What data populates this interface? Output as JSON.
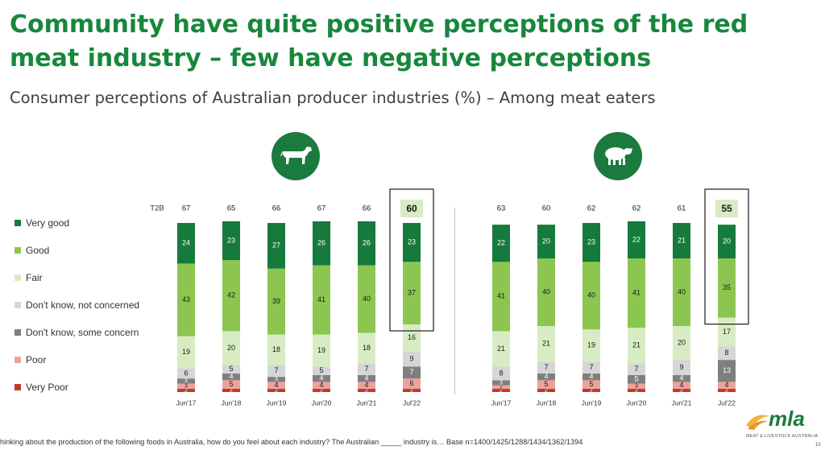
{
  "title": "Community have quite positive perceptions of the red meat industry – few have negative perceptions",
  "subtitle": "Consumer perceptions of Australian producer industries (%) – Among meat eaters",
  "footnote": "hinking about the production of the following foods in Australia, how do you feel about each industry? The Australian _____ industry is… Base n=1400/1425/1288/1434/1362/1394",
  "page_number": "10",
  "logo": {
    "text": "mla",
    "tagline": "MEAT & LIVESTOCK AUSTRALIA"
  },
  "icons": [
    "cattle-icon",
    "sheep-icon"
  ],
  "colors": {
    "very_good": "#157a3c",
    "good": "#8cc650",
    "fair": "#d8ecc4",
    "dk_not_concerned": "#d6d6d6",
    "dk_some_concern": "#7f7f7f",
    "poor": "#eca39c",
    "very_poor": "#c0392b",
    "title": "#17873c"
  },
  "legend": [
    {
      "label": "Very good",
      "color": "#157a3c"
    },
    {
      "label": "Good",
      "color": "#8cc650"
    },
    {
      "label": "Fair",
      "color": "#d8ecc4"
    },
    {
      "label": "Don't know, not concerned",
      "color": "#d6d6d6"
    },
    {
      "label": "Don't know, some concern",
      "color": "#7f7f7f"
    },
    {
      "label": "Poor",
      "color": "#eca39c"
    },
    {
      "label": "Very Poor",
      "color": "#c0392b"
    }
  ],
  "chart_data": [
    {
      "type": "bar",
      "stacked": true,
      "t2b_label": "T2B",
      "categories": [
        "Jun'17",
        "Jun'18",
        "Jun'19",
        "Jun'20",
        "Jun'21",
        "Jul'22"
      ],
      "t2b": [
        67,
        65,
        66,
        67,
        66,
        60
      ],
      "highlight_index": 5,
      "series": [
        {
          "name": "Very good",
          "values": [
            24,
            23,
            27,
            26,
            26,
            23
          ]
        },
        {
          "name": "Good",
          "values": [
            43,
            42,
            39,
            41,
            40,
            37
          ]
        },
        {
          "name": "Fair",
          "values": [
            19,
            20,
            18,
            19,
            18,
            16
          ]
        },
        {
          "name": "Don't know, not concerned",
          "values": [
            6,
            5,
            7,
            5,
            7,
            9
          ]
        },
        {
          "name": "Don't know, some concern",
          "values": [
            3,
            4,
            3,
            4,
            4,
            7
          ]
        },
        {
          "name": "Poor",
          "values": [
            3,
            5,
            4,
            4,
            4,
            6
          ]
        },
        {
          "name": "Very Poor",
          "values": [
            2,
            2,
            2,
            2,
            2,
            2
          ]
        }
      ]
    },
    {
      "type": "bar",
      "stacked": true,
      "categories": [
        "Jun'17",
        "Jun'18",
        "Jun'19",
        "Jun'20",
        "Jun'21",
        "Jul'22"
      ],
      "t2b": [
        63,
        60,
        62,
        62,
        61,
        55
      ],
      "highlight_index": 5,
      "series": [
        {
          "name": "Very good",
          "values": [
            22,
            20,
            23,
            22,
            21,
            20
          ]
        },
        {
          "name": "Good",
          "values": [
            41,
            40,
            40,
            41,
            40,
            35
          ]
        },
        {
          "name": "Fair",
          "values": [
            21,
            21,
            19,
            21,
            20,
            17
          ]
        },
        {
          "name": "Don't know, not concerned",
          "values": [
            8,
            7,
            7,
            7,
            9,
            8
          ]
        },
        {
          "name": "Don't know, some concern",
          "values": [
            3,
            4,
            4,
            5,
            4,
            13
          ]
        },
        {
          "name": "Poor",
          "values": [
            2,
            5,
            5,
            3,
            4,
            4
          ]
        },
        {
          "name": "Very Poor",
          "values": [
            2,
            2,
            2,
            2,
            2,
            2
          ]
        }
      ]
    }
  ]
}
